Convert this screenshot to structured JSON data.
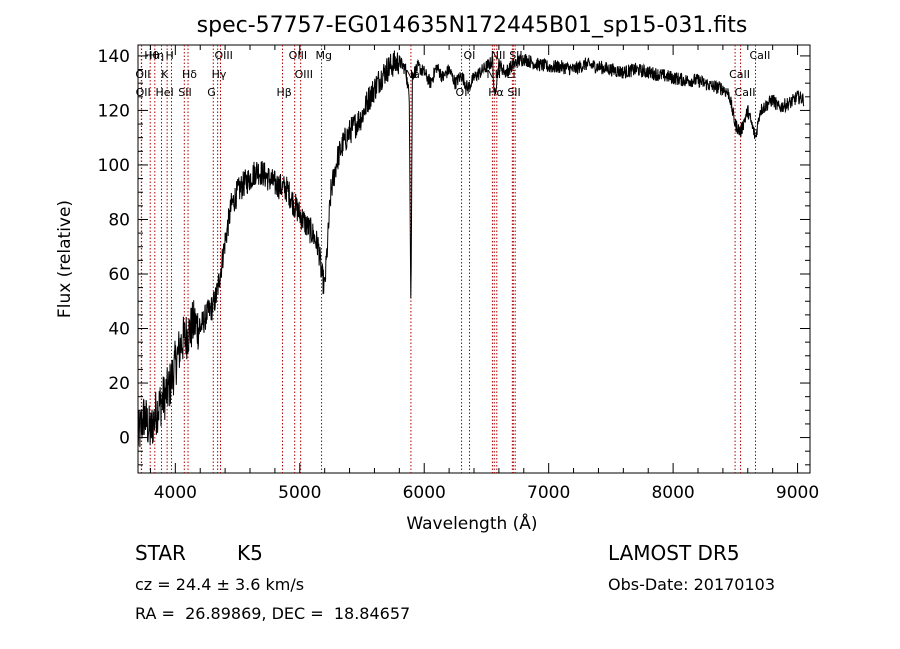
{
  "chart_data": {
    "type": "line",
    "title": "spec-57757-EG014635N172445B01_sp15-031.fits",
    "xlabel": "Wavelength (Å)",
    "ylabel": "Flux (relative)",
    "xlim": [
      3700,
      9100
    ],
    "ylim": [
      -13,
      144
    ],
    "x_ticks": [
      4000,
      5000,
      6000,
      7000,
      8000,
      9000
    ],
    "y_ticks": [
      0,
      20,
      40,
      60,
      80,
      100,
      120,
      140
    ],
    "grid": false,
    "series": [
      {
        "x": [
          3700,
          3750,
          3800,
          3850,
          3900,
          3950,
          4000,
          4050,
          4100,
          4150,
          4200,
          4250,
          4300,
          4330,
          4360,
          4400,
          4450,
          4500,
          4550,
          4600,
          4650,
          4700,
          4750,
          4800,
          4850,
          4900,
          4950,
          5000,
          5050,
          5100,
          5150,
          5175,
          5200,
          5250,
          5300,
          5350,
          5400,
          5450,
          5500,
          5550,
          5600,
          5650,
          5700,
          5750,
          5800,
          5850,
          5880,
          5893,
          5905,
          5950,
          6000,
          6050,
          6100,
          6150,
          6200,
          6250,
          6300,
          6350,
          6400,
          6450,
          6500,
          6550,
          6563,
          6600,
          6650,
          6700,
          6750,
          6800,
          6900,
          7000,
          7100,
          7200,
          7300,
          7400,
          7500,
          7600,
          7700,
          7800,
          7900,
          8000,
          8100,
          8200,
          8300,
          8400,
          8450,
          8498,
          8542,
          8600,
          8662,
          8700,
          8750,
          8800,
          8850,
          8900,
          8950,
          9000,
          9050
        ],
        "y": [
          0,
          8,
          2,
          10,
          14,
          18,
          27,
          35,
          38,
          42,
          40,
          45,
          48,
          52,
          60,
          72,
          85,
          90,
          93,
          95,
          98,
          97,
          95,
          93,
          92,
          91,
          86,
          82,
          78,
          75,
          70,
          60,
          55,
          90,
          102,
          108,
          112,
          115,
          118,
          124,
          128,
          132,
          135,
          137,
          138,
          135,
          125,
          48,
          133,
          136,
          134,
          130,
          136,
          132,
          135,
          130,
          133,
          128,
          132,
          134,
          136,
          138,
          125,
          137,
          134,
          136,
          138,
          139,
          137,
          136,
          136,
          135,
          137,
          136,
          135,
          134,
          135,
          134,
          133,
          132,
          131,
          131,
          129,
          128,
          126,
          115,
          112,
          120,
          110,
          120,
          122,
          124,
          121,
          122,
          123,
          125,
          124
        ]
      }
    ],
    "lines": [
      {
        "label": "Hθ",
        "x": 3798
      },
      {
        "label": "OII",
        "x": 3727
      },
      {
        "label": "OII",
        "x": 3729
      },
      {
        "label": "Hη",
        "x": 3835
      },
      {
        "label": "K",
        "x": 3934
      },
      {
        "label": "HeI",
        "x": 3889
      },
      {
        "label": "H",
        "x": 3969
      },
      {
        "label": "Hδ",
        "x": 4102
      },
      {
        "label": "SII",
        "x": 4072
      },
      {
        "label": "OIII",
        "x": 4363
      },
      {
        "label": "Hγ",
        "x": 4340
      },
      {
        "label": "G",
        "x": 4305
      },
      {
        "label": "OIII",
        "x": 4959
      },
      {
        "label": "OIII",
        "x": 5007
      },
      {
        "label": "Hβ",
        "x": 4861
      },
      {
        "label": "Mg",
        "x": 5175
      },
      {
        "label": "Na",
        "x": 5893
      },
      {
        "label": "OI",
        "x": 6300
      },
      {
        "label": "OI",
        "x": 6364
      },
      {
        "label": "NII",
        "x": 6548
      },
      {
        "label": "Hα",
        "x": 6563
      },
      {
        "label": "NII",
        "x": 6583
      },
      {
        "label": "Li",
        "x": 6708
      },
      {
        "label": "SII",
        "x": 6716
      },
      {
        "label": "SII",
        "x": 6731
      },
      {
        "label": "CaII",
        "x": 8498
      },
      {
        "label": "CaII",
        "x": 8542
      },
      {
        "label": "CaII",
        "x": 8662
      }
    ]
  },
  "info": {
    "class_label": "STAR",
    "subclass": "K5",
    "survey": "LAMOST DR5",
    "cz": "cz = 24.4 ± 3.6 km/s",
    "obs_date": "Obs-Date: 20170103",
    "coords": "RA =  26.89869, DEC =  18.84657"
  }
}
